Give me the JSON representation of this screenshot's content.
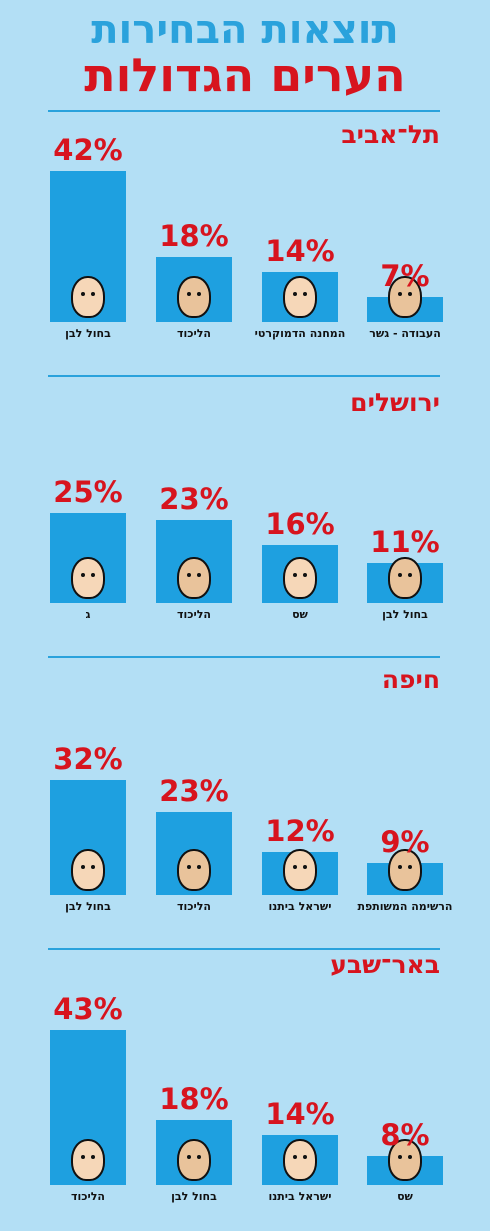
{
  "header": {
    "title_line1": "תוצאות הבחירות",
    "title_line2": "הערים הגדולות",
    "title_line1_color": "#2aa2dc",
    "title_line2_color": "#d7141e"
  },
  "colors": {
    "background": "#b3dff5",
    "bar": "#1ea0e0",
    "percent_text": "#d7141e",
    "city_text": "#d7141e"
  },
  "chart_data": [
    {
      "type": "bar",
      "title": "תל־אביב",
      "categories": [
        "בחול לבן",
        "הליכוד",
        "המחנה הדמוקרטי",
        "העבודה - גשר"
      ],
      "values": [
        42,
        18,
        14,
        7
      ],
      "value_labels": [
        "42%",
        "18%",
        "14%",
        "7%"
      ],
      "ylim": [
        0,
        45
      ]
    },
    {
      "type": "bar",
      "title": "ירושלים",
      "categories": [
        "ג",
        "הליכוד",
        "שס",
        "בחול לבן"
      ],
      "values": [
        25,
        23,
        16,
        11
      ],
      "value_labels": [
        "25%",
        "23%",
        "16%",
        "11%"
      ],
      "ylim": [
        0,
        45
      ]
    },
    {
      "type": "bar",
      "title": "חיפה",
      "categories": [
        "בחול לבן",
        "הליכוד",
        "ישראל ביתנו",
        "הרשימה המשותפת"
      ],
      "values": [
        32,
        23,
        12,
        9
      ],
      "value_labels": [
        "32%",
        "23%",
        "12%",
        "9%"
      ],
      "ylim": [
        0,
        45
      ]
    },
    {
      "type": "bar",
      "title": "באר־שבע",
      "categories": [
        "הליכוד",
        "בחול לבן",
        "ישראל ביתנו",
        "שס"
      ],
      "values": [
        43,
        18,
        14,
        8
      ],
      "value_labels": [
        "43%",
        "18%",
        "14%",
        "8%"
      ],
      "ylim": [
        0,
        45
      ]
    }
  ]
}
